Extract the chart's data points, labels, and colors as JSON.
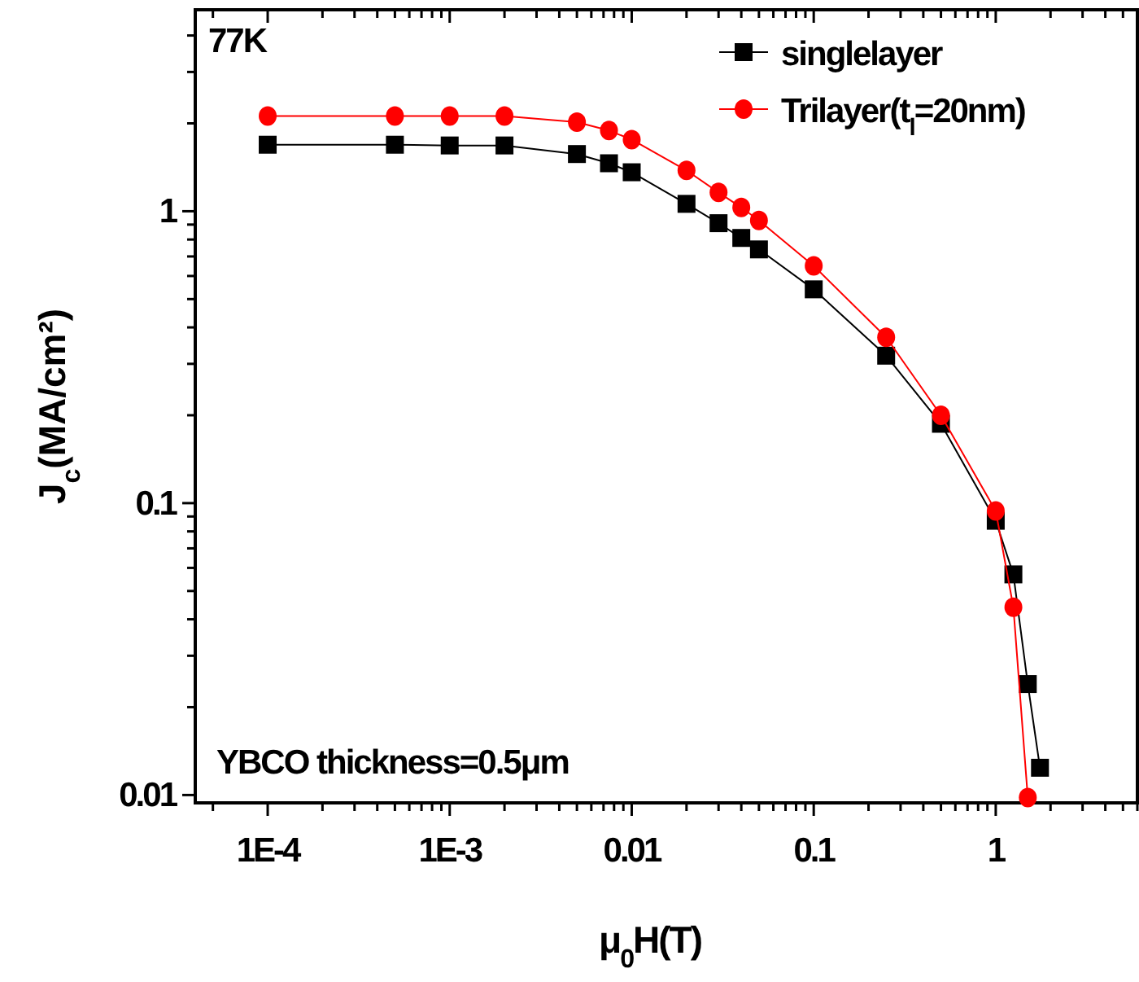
{
  "chart_data": {
    "type": "line",
    "xlabel": "μ$_{0}$H(T)",
    "ylabel": "J$_{c}$(MA/cm²)",
    "log": "xy",
    "xlim": [
      4e-05,
      6
    ],
    "ylim": [
      0.0094,
      4.9
    ],
    "xticks": [
      {
        "value": 0.0001,
        "label": "1E-4"
      },
      {
        "value": 0.001,
        "label": "1E-3"
      },
      0.01,
      0.1,
      1,
      {
        "value": 5e-05,
        "label": null
      },
      {
        "value": 0.0002,
        "label": null
      },
      {
        "value": 0.0003,
        "label": null
      },
      {
        "value": 0.0004,
        "label": null
      },
      {
        "value": 0.0005,
        "label": null
      },
      {
        "value": 0.0006,
        "label": null
      },
      {
        "value": 0.0007,
        "label": null
      },
      {
        "value": 0.0008,
        "label": null
      },
      {
        "value": 0.0009,
        "label": null
      },
      {
        "value": 0.002,
        "label": null
      },
      {
        "value": 0.003,
        "label": null
      },
      {
        "value": 0.004,
        "label": null
      },
      {
        "value": 0.005,
        "label": null
      },
      {
        "value": 0.006,
        "label": null
      },
      {
        "value": 0.007,
        "label": null
      },
      {
        "value": 0.008,
        "label": null
      },
      {
        "value": 0.009,
        "label": null
      },
      {
        "value": 0.02,
        "label": null
      },
      {
        "value": 0.03,
        "label": null
      },
      {
        "value": 0.04,
        "label": null
      },
      {
        "value": 0.05,
        "label": null
      },
      {
        "value": 0.06,
        "label": null
      },
      {
        "value": 0.07,
        "label": null
      },
      {
        "value": 0.08,
        "label": null
      },
      {
        "value": 0.09,
        "label": null
      },
      {
        "value": 0.2,
        "label": null
      },
      {
        "value": 0.3,
        "label": null
      },
      {
        "value": 0.4,
        "label": null
      },
      {
        "value": 0.5,
        "label": null
      },
      {
        "value": 0.6,
        "label": null
      },
      {
        "value": 0.7,
        "label": null
      },
      {
        "value": 0.8,
        "label": null
      },
      {
        "value": 0.9,
        "label": null
      },
      {
        "value": 2,
        "label": null
      },
      {
        "value": 3,
        "label": null
      },
      {
        "value": 4,
        "label": null
      },
      {
        "value": 5,
        "label": null
      },
      {
        "value": 6,
        "label": null
      }
    ],
    "yticks": [
      0.01,
      0.1,
      1,
      {
        "value": 0.02,
        "label": null
      },
      {
        "value": 0.03,
        "label": null
      },
      {
        "value": 0.04,
        "label": null
      },
      {
        "value": 0.05,
        "label": null
      },
      {
        "value": 0.06,
        "label": null
      },
      {
        "value": 0.07,
        "label": null
      },
      {
        "value": 0.08,
        "label": null
      },
      {
        "value": 0.09,
        "label": null
      },
      {
        "value": 0.2,
        "label": null
      },
      {
        "value": 0.3,
        "label": null
      },
      {
        "value": 0.4,
        "label": null
      },
      {
        "value": 0.5,
        "label": null
      },
      {
        "value": 0.6,
        "label": null
      },
      {
        "value": 0.7,
        "label": null
      },
      {
        "value": 0.8,
        "label": null
      },
      {
        "value": 0.9,
        "label": null
      },
      {
        "value": 2,
        "label": null
      },
      {
        "value": 3,
        "label": null
      },
      {
        "value": 4,
        "label": null
      }
    ],
    "x": [
      0.0001,
      0.0005,
      0.001,
      0.002,
      0.005,
      0.0075,
      0.01,
      0.02,
      0.03,
      0.04,
      0.05,
      0.1,
      0.25,
      0.5,
      1,
      1.25,
      1.5,
      1.75
    ],
    "series": [
      {
        "name": "singlelayer",
        "color": "#000000",
        "marker": "square",
        "values": [
          1.69,
          1.69,
          1.68,
          1.68,
          1.57,
          1.46,
          1.36,
          1.06,
          0.91,
          0.81,
          0.74,
          0.54,
          0.32,
          0.187,
          0.087,
          0.057,
          0.024,
          0.0124
        ]
      },
      {
        "name": "Trilayer(t$_{l}$=20nm)",
        "color": "#ff0000",
        "marker": "circle",
        "x": [
          0.0001,
          0.0005,
          0.001,
          0.002,
          0.005,
          0.0075,
          0.01,
          0.02,
          0.03,
          0.04,
          0.05,
          0.1,
          0.25,
          0.5,
          1,
          1.25,
          1.5
        ],
        "values": [
          2.12,
          2.12,
          2.12,
          2.12,
          2.02,
          1.89,
          1.76,
          1.38,
          1.16,
          1.03,
          0.93,
          0.65,
          0.37,
          0.2,
          0.094,
          0.044,
          0.0098
        ]
      }
    ],
    "annotations": [
      "77K",
      "YBCO thickness=0.5μm"
    ],
    "legend": "top right",
    "grid": false,
    "line_style": "solid"
  }
}
